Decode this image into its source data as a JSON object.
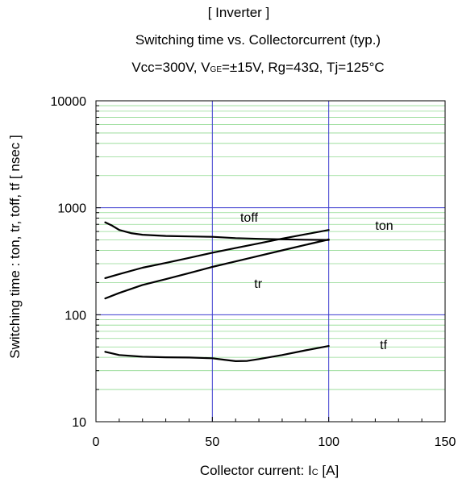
{
  "title": {
    "line1": "[ Inverter ]",
    "line2": "Switching time  vs.  Collectorcurrent (typ.)",
    "line3": {
      "p1": "Vcc=300V,  V",
      "sub": "GE",
      "p2": "=±15V,  Rg=43Ω,  Tj=125°C"
    }
  },
  "chart_data": {
    "type": "line",
    "xlabel": {
      "main": "Collector current: I",
      "sub": "C",
      "tail": " [A]"
    },
    "ylabel": "Switching time : ton, tr, toff, tf  [ nsec ]",
    "xlim": [
      0,
      150
    ],
    "ylim": [
      10,
      10000
    ],
    "yscale": "log",
    "xticks": [
      "0",
      "50",
      "100",
      "150"
    ],
    "yticks": [
      "10",
      "100",
      "1000",
      "10000"
    ],
    "grid": true,
    "colors": {
      "major_grid": "#3b3bcf",
      "minor_grid": "#8fd98f",
      "line": "#000000"
    },
    "series": [
      {
        "name": "toff",
        "label_at": [
          62,
          810
        ],
        "x": [
          4,
          7,
          10,
          15,
          20,
          30,
          40,
          50,
          60,
          70,
          80,
          90,
          100
        ],
        "y": [
          730,
          680,
          620,
          580,
          560,
          545,
          540,
          535,
          520,
          512,
          507,
          503,
          500
        ]
      },
      {
        "name": "ton",
        "label_at": [
          120,
          680
        ],
        "x": [
          4,
          10,
          20,
          30,
          40,
          50,
          60,
          70,
          80,
          90,
          100
        ],
        "y": [
          220,
          240,
          275,
          305,
          340,
          380,
          420,
          465,
          515,
          565,
          620
        ]
      },
      {
        "name": "tr",
        "label_at": [
          68,
          195
        ],
        "x": [
          4,
          10,
          20,
          30,
          40,
          50,
          60,
          70,
          80,
          90,
          100
        ],
        "y": [
          142,
          160,
          190,
          215,
          245,
          280,
          315,
          355,
          400,
          450,
          505
        ]
      },
      {
        "name": "tf",
        "label_at": [
          122,
          52
        ],
        "x": [
          4,
          10,
          20,
          30,
          40,
          50,
          55,
          60,
          65,
          70,
          80,
          90,
          100
        ],
        "y": [
          45,
          42,
          40.5,
          40,
          39.8,
          39.2,
          38,
          36.8,
          37,
          38.5,
          42,
          46.5,
          51
        ]
      }
    ]
  }
}
